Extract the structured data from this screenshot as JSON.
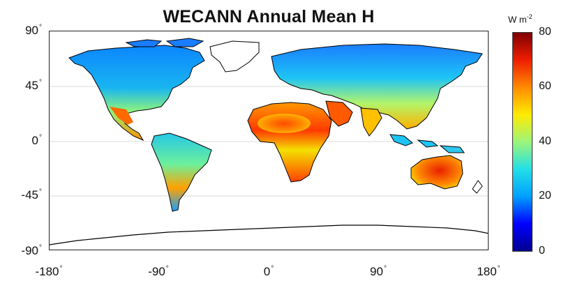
{
  "title": "WECANN Annual Mean H",
  "y_ticks": [
    {
      "label": "90",
      "deg": "°"
    },
    {
      "label": "45",
      "deg": "°"
    },
    {
      "label": "0",
      "deg": "°"
    },
    {
      "label": "-45",
      "deg": "°"
    },
    {
      "label": "-90",
      "deg": "°"
    }
  ],
  "x_ticks": [
    {
      "label": "-180",
      "deg": "°"
    },
    {
      "label": "-90",
      "deg": "°"
    },
    {
      "label": "0",
      "deg": "°"
    },
    {
      "label": "90",
      "deg": "°"
    },
    {
      "label": "180",
      "deg": "°"
    }
  ],
  "colorbar": {
    "unit_base": "W m",
    "unit_exp": "-2",
    "ticks": [
      "80",
      "60",
      "40",
      "20",
      "0"
    ],
    "range": [
      0,
      80
    ],
    "colormap": "jet",
    "colors": [
      "#00008f",
      "#0000ff",
      "#00a0ff",
      "#22e0e6",
      "#9cf57a",
      "#ffeb00",
      "#ff8a00",
      "#ef1d00",
      "#800000"
    ]
  },
  "map": {
    "projection": "equirectangular",
    "lon_range": [
      -180,
      180
    ],
    "lat_range": [
      -90,
      90
    ],
    "gridlines": [
      45,
      0,
      -45
    ],
    "gridline_color": "#e6e6e6",
    "coastline_color": "#000000",
    "ocean_color": "#ffffff"
  }
}
